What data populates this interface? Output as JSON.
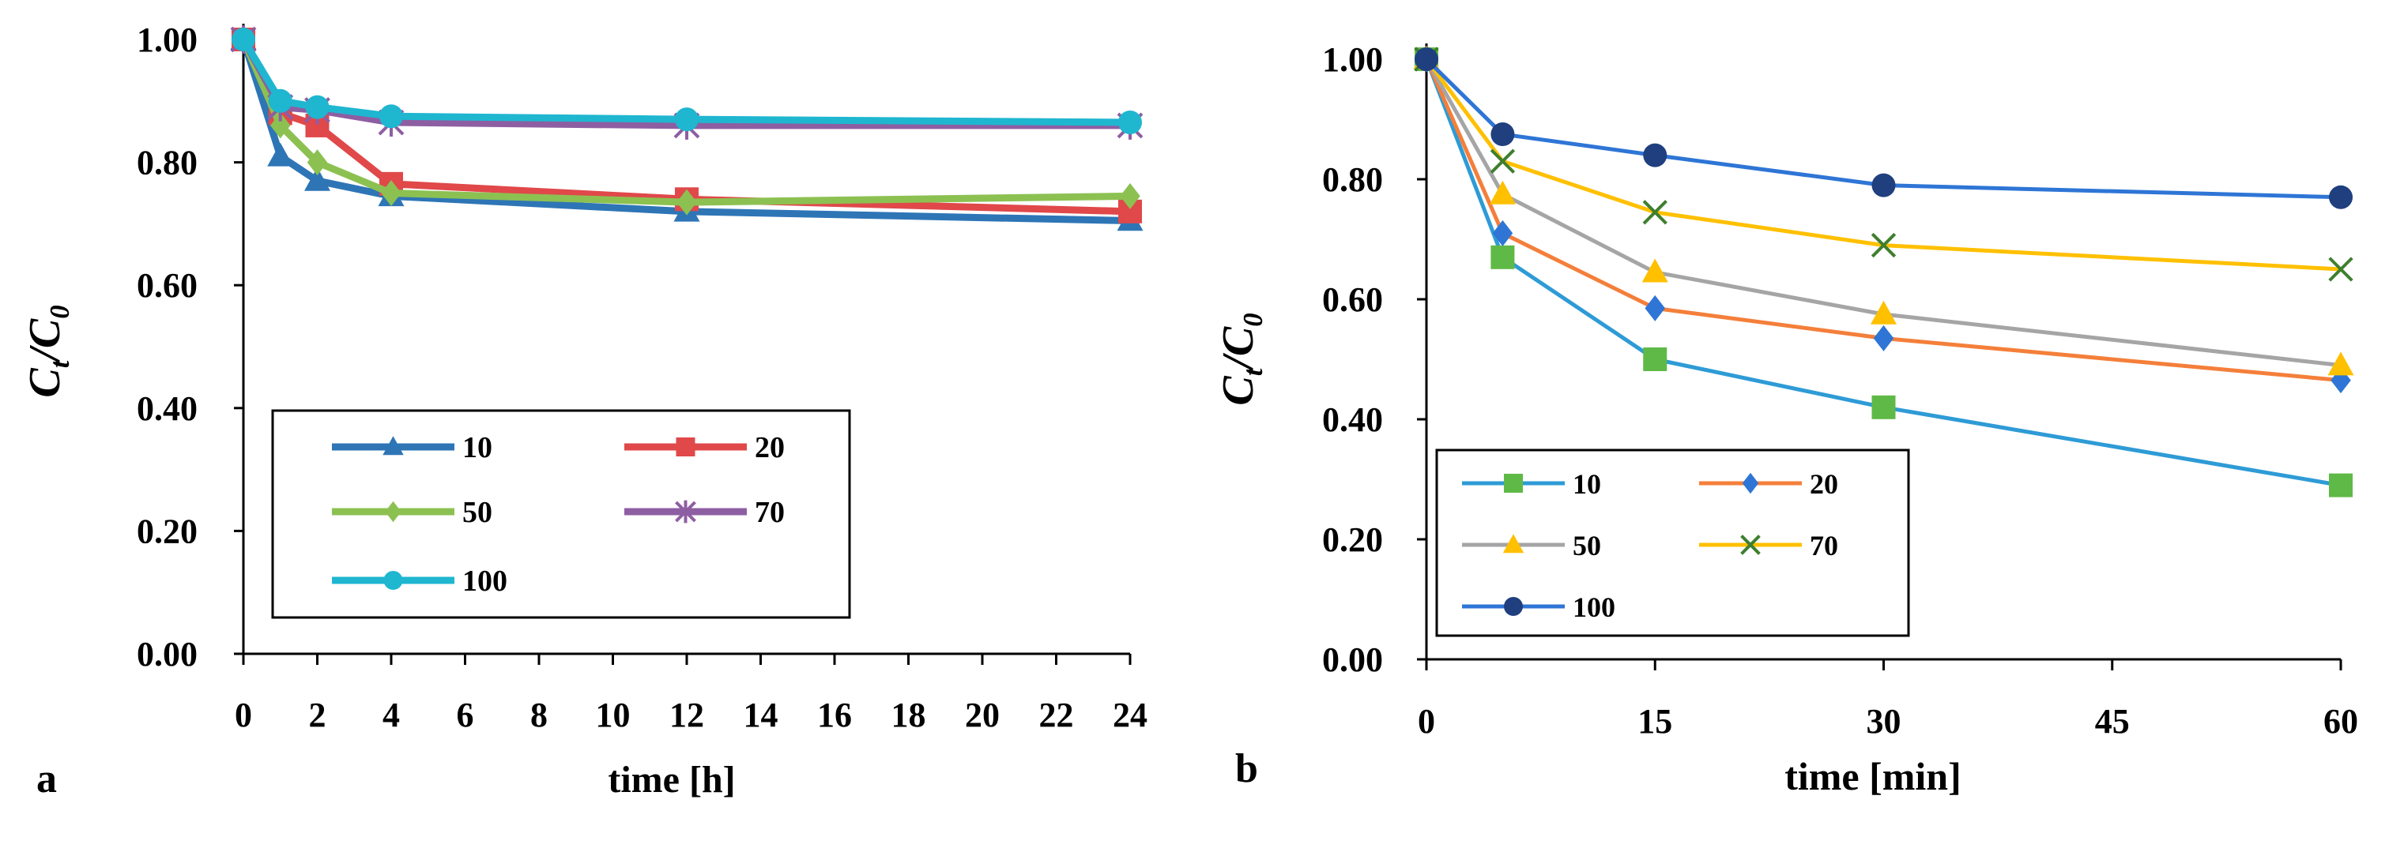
{
  "chart_data": [
    {
      "panel_label": "a",
      "type": "line",
      "xlabel": "time [h]",
      "ylabel_main": "C",
      "ylabel_sub1": "t",
      "ylabel_sep": "/C",
      "ylabel_sub2": "0",
      "xlim": [
        0,
        24
      ],
      "ylim": [
        0,
        1
      ],
      "xticks": [
        0,
        2,
        4,
        6,
        8,
        10,
        12,
        14,
        16,
        18,
        20,
        22,
        24
      ],
      "yticks": [
        0,
        0.2,
        0.4,
        0.6,
        0.8,
        1.0
      ],
      "x": [
        0,
        1,
        2,
        4,
        12,
        24
      ],
      "series": [
        {
          "name": "10",
          "color": "#2e75b6",
          "marker": "triangle",
          "values": [
            1.0,
            0.81,
            0.77,
            0.745,
            0.72,
            0.705
          ]
        },
        {
          "name": "20",
          "color": "#e0484a",
          "marker": "square",
          "values": [
            1.0,
            0.88,
            0.86,
            0.765,
            0.74,
            0.72
          ]
        },
        {
          "name": "50",
          "color": "#8cc152",
          "marker": "diamond",
          "values": [
            1.0,
            0.86,
            0.8,
            0.75,
            0.735,
            0.745
          ]
        },
        {
          "name": "70",
          "color": "#8e5ea2",
          "marker": "asterisk",
          "values": [
            1.0,
            0.89,
            0.885,
            0.865,
            0.86,
            0.86
          ]
        },
        {
          "name": "100",
          "color": "#1fb6d0",
          "marker": "circle",
          "values": [
            1.0,
            0.9,
            0.89,
            0.875,
            0.87,
            0.865
          ]
        }
      ]
    },
    {
      "panel_label": "b",
      "type": "line",
      "xlabel": "time [min]",
      "ylabel_main": "C",
      "ylabel_sub1": "t",
      "ylabel_sep": "/C",
      "ylabel_sub2": "0",
      "xlim": [
        0,
        60
      ],
      "ylim": [
        0,
        1
      ],
      "xticks": [
        0,
        15,
        30,
        45,
        60
      ],
      "yticks": [
        0,
        0.2,
        0.4,
        0.6,
        0.8,
        1.0
      ],
      "x": [
        0,
        5,
        15,
        30,
        60
      ],
      "series": [
        {
          "name": "10",
          "color": "#2e9bd6",
          "marker": "square",
          "marker_color": "#5fb946",
          "values": [
            1.0,
            0.67,
            0.5,
            0.42,
            0.29
          ]
        },
        {
          "name": "20",
          "color": "#f47f3a",
          "marker": "diamond",
          "marker_color": "#2e75d6",
          "values": [
            1.0,
            0.71,
            0.585,
            0.535,
            0.465
          ]
        },
        {
          "name": "50",
          "color": "#a5a5a5",
          "marker": "triangle",
          "marker_color": "#ffc000",
          "values": [
            1.0,
            0.775,
            0.645,
            0.575,
            0.49
          ]
        },
        {
          "name": "70",
          "color": "#ffc000",
          "marker": "x",
          "marker_color": "#3f7f2f",
          "values": [
            1.0,
            0.83,
            0.745,
            0.69,
            0.65
          ]
        },
        {
          "name": "100",
          "color": "#2e75d6",
          "marker": "circle",
          "marker_color": "#1f3f7f",
          "values": [
            1.0,
            0.875,
            0.84,
            0.79,
            0.77
          ]
        }
      ]
    }
  ]
}
